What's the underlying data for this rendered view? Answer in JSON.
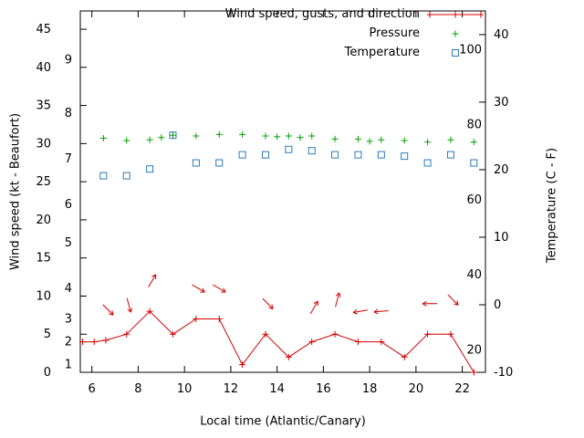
{
  "colors": {
    "wind": "#d40000",
    "pressure": "#00a000",
    "temperature": "#2a7ab9",
    "axis": "#000000",
    "background": "#ffffff"
  },
  "legend": {
    "items": [
      {
        "label": "Wind speed, gusts, and direction",
        "series": "wind",
        "marker": "line-plus"
      },
      {
        "label": "Pressure",
        "series": "pressure",
        "marker": "plus"
      },
      {
        "label": "Temperature",
        "series": "temperature",
        "marker": "square-open"
      }
    ]
  },
  "axes": {
    "x": {
      "label": "Local time (Atlantic/Canary)",
      "min": 5.5,
      "max": 23,
      "ticks": [
        6,
        8,
        10,
        12,
        14,
        16,
        18,
        20,
        22
      ]
    },
    "y_left": {
      "label": "Wind speed (kt - Beaufort)",
      "min": 0,
      "max": 47.4,
      "ticks": [
        0,
        5,
        10,
        15,
        20,
        25,
        30,
        35,
        40,
        45
      ],
      "beaufort_labels": [
        {
          "label": "1",
          "kt": 1
        },
        {
          "label": "2",
          "kt": 4
        },
        {
          "label": "3",
          "kt": 7
        },
        {
          "label": "4",
          "kt": 11
        },
        {
          "label": "5",
          "kt": 17
        },
        {
          "label": "6",
          "kt": 22
        },
        {
          "label": "7",
          "kt": 28
        },
        {
          "label": "8",
          "kt": 34
        },
        {
          "label": "9",
          "kt": 41
        }
      ]
    },
    "y_right": {
      "label": "Temperature (C - F)",
      "min": -10,
      "max": 43.5,
      "ticks": [
        -10,
        0,
        10,
        20,
        30,
        40
      ],
      "fahrenheit_labels": [
        20,
        40,
        60,
        80,
        100
      ]
    }
  },
  "chart_data": {
    "type": "line",
    "title": "",
    "xlabel": "Local time (Atlantic/Canary)",
    "ylabel_left": "Wind speed (kt - Beaufort)",
    "ylabel_right": "Temperature (C - F)",
    "x_range": [
      5.5,
      23
    ],
    "y_left_range_kt": [
      0,
      47.4
    ],
    "y_right_range_c": [
      -10,
      43.5
    ],
    "grid": false,
    "legend_position": "top-right-inside",
    "series": [
      {
        "name": "Wind speed, gusts, and direction",
        "type": "line+points",
        "marker": "plus",
        "axis": "left",
        "units": "kt",
        "points": [
          [
            5.6,
            4
          ],
          [
            6.1,
            4
          ],
          [
            6.6,
            4.2
          ],
          [
            7.5,
            5
          ],
          [
            8.5,
            8
          ],
          [
            9.5,
            5
          ],
          [
            10.5,
            7
          ],
          [
            11.5,
            7
          ],
          [
            12.5,
            1
          ],
          [
            13.5,
            5
          ],
          [
            14.5,
            2
          ],
          [
            15.5,
            4
          ],
          [
            16.5,
            5
          ],
          [
            17.5,
            4
          ],
          [
            18.5,
            4
          ],
          [
            19.5,
            2
          ],
          [
            20.5,
            5
          ],
          [
            21.5,
            5
          ],
          [
            22.5,
            0
          ]
        ]
      },
      {
        "name": "Wind direction arrows",
        "type": "vector",
        "axis": "left",
        "units": "kt",
        "arrows": [
          {
            "x": 6.7,
            "y": 8.2,
            "angle": 315
          },
          {
            "x": 7.6,
            "y": 8.8,
            "angle": 285
          },
          {
            "x": 8.6,
            "y": 12.0,
            "angle": 60
          },
          {
            "x": 10.6,
            "y": 11.0,
            "angle": 330
          },
          {
            "x": 11.5,
            "y": 11.0,
            "angle": 330
          },
          {
            "x": 13.6,
            "y": 9.0,
            "angle": 315
          },
          {
            "x": 15.6,
            "y": 8.5,
            "angle": 60
          },
          {
            "x": 16.6,
            "y": 9.5,
            "angle": 75
          },
          {
            "x": 17.6,
            "y": 8.0,
            "angle": 190
          },
          {
            "x": 18.5,
            "y": 8.0,
            "angle": 185
          },
          {
            "x": 20.6,
            "y": 9.0,
            "angle": 180
          },
          {
            "x": 21.6,
            "y": 9.5,
            "angle": 315
          }
        ]
      },
      {
        "name": "Pressure",
        "type": "points",
        "marker": "plus",
        "axis": "left",
        "units": "left-axis scale (mapped)",
        "points": [
          [
            6.5,
            30.7
          ],
          [
            7.5,
            30.4
          ],
          [
            8.5,
            30.5
          ],
          [
            9.0,
            30.8
          ],
          [
            9.5,
            31.1
          ],
          [
            10.5,
            31.0
          ],
          [
            11.5,
            31.2
          ],
          [
            12.5,
            31.2
          ],
          [
            13.5,
            31.0
          ],
          [
            14.0,
            30.9
          ],
          [
            14.5,
            31.0
          ],
          [
            15.0,
            30.8
          ],
          [
            15.5,
            31.0
          ],
          [
            16.5,
            30.6
          ],
          [
            17.5,
            30.6
          ],
          [
            18.0,
            30.3
          ],
          [
            18.5,
            30.5
          ],
          [
            19.5,
            30.4
          ],
          [
            20.5,
            30.2
          ],
          [
            21.5,
            30.5
          ],
          [
            22.5,
            30.2
          ]
        ]
      },
      {
        "name": "Temperature",
        "type": "points",
        "marker": "square-open",
        "axis": "right",
        "units": "C",
        "points": [
          [
            6.5,
            19.1
          ],
          [
            7.5,
            19.1
          ],
          [
            8.5,
            20.1
          ],
          [
            9.5,
            25.1
          ],
          [
            10.5,
            21.0
          ],
          [
            11.5,
            21.0
          ],
          [
            12.5,
            22.2
          ],
          [
            13.5,
            22.2
          ],
          [
            14.5,
            23.0
          ],
          [
            15.5,
            22.8
          ],
          [
            16.5,
            22.2
          ],
          [
            17.5,
            22.2
          ],
          [
            18.5,
            22.2
          ],
          [
            19.5,
            22.0
          ],
          [
            20.5,
            21.0
          ],
          [
            21.5,
            22.2
          ],
          [
            22.5,
            21.0
          ]
        ]
      }
    ]
  }
}
